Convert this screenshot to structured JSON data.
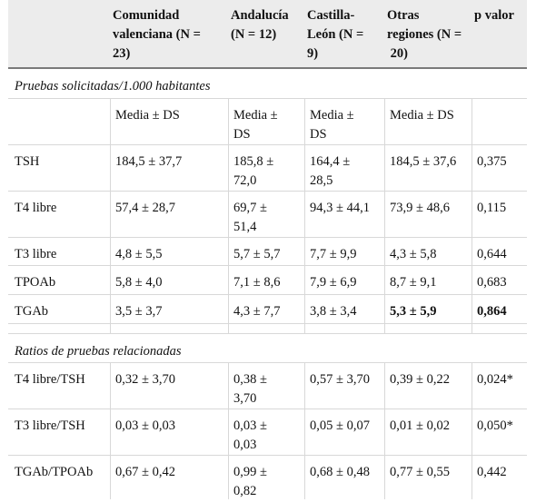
{
  "header": {
    "col1": "",
    "col2_lines": [
      "Comunidad",
      "valenciana (N =",
      "23)"
    ],
    "col3_lines": [
      "Andalucía",
      "(N = 12)"
    ],
    "col4_lines": [
      "Castilla-",
      "León (N =",
      "9)"
    ],
    "col5_lines": [
      "Otras",
      "regiones (N =",
      " 20)"
    ],
    "col6": "p valor"
  },
  "section1": {
    "title": "Pruebas solicitadas/1.000 habitantes",
    "subheader": {
      "c2": "Media ± DS",
      "c3_lines": [
        "Media ±",
        "DS"
      ],
      "c4_lines": [
        "Media ±",
        "DS"
      ],
      "c5": "Media ± DS"
    },
    "rows": [
      {
        "label": "TSH",
        "c2": "184,5 ± 37,7",
        "c3_lines": [
          "185,8 ±",
          "72,0"
        ],
        "c4_lines": [
          "164,4 ±",
          "28,5"
        ],
        "c5": "184,5 ± 37,6",
        "p": "0,375"
      },
      {
        "label": "T4 libre",
        "c2": "57,4 ± 28,7",
        "c3_lines": [
          "69,7 ±",
          "51,4"
        ],
        "c4_lines": [
          "94,3 ± 44,1"
        ],
        "c5": "73,9 ± 48,6",
        "p": "0,115"
      },
      {
        "label": "T3 libre",
        "c2": "4,8 ± 5,5",
        "c3_lines": [
          "5,7 ± 5,7"
        ],
        "c4_lines": [
          "7,7 ± 9,9"
        ],
        "c5": "4,3 ± 5,8",
        "p": "0,644"
      },
      {
        "label": "TPOAb",
        "c2": "5,8 ± 4,0",
        "c3_lines": [
          "7,1 ± 8,6"
        ],
        "c4_lines": [
          "7,9 ± 6,9"
        ],
        "c5": "8,7 ± 9,1",
        "p": "0,683"
      },
      {
        "label": "TGAb",
        "c2": "3,5 ± 3,7",
        "c3_lines": [
          "4,3 ± 7,7"
        ],
        "c4_lines": [
          "3,8 ± 3,4"
        ],
        "c5": "5,3 ± 5,9",
        "p": "0,864"
      }
    ]
  },
  "section2": {
    "title": "Ratios de pruebas relacionadas",
    "rows": [
      {
        "label": "T4 libre/TSH",
        "c2": "0,32 ± 3,70",
        "c3_lines": [
          "0,38 ±",
          "3,70"
        ],
        "c4_lines": [
          "0,57 ± 3,70"
        ],
        "c5": "0,39 ± 0,22",
        "p": "0,024*"
      },
      {
        "label": "T3 libre/TSH",
        "c2": "0,03 ± 0,03",
        "c3_lines": [
          "0,03 ±",
          "0,03"
        ],
        "c4_lines": [
          "0,05 ± 0,07"
        ],
        "c5": "0,01 ± 0,02",
        "p": "0,050*"
      },
      {
        "label": "TGAb/TPOAb",
        "c2": "0,67 ± 0,42",
        "c3_lines": [
          "0,99 ±",
          "0,82"
        ],
        "c4_lines": [
          "0,68 ± 0,48"
        ],
        "c5": "0,77 ± 0,55",
        "p": "0,442"
      }
    ]
  }
}
